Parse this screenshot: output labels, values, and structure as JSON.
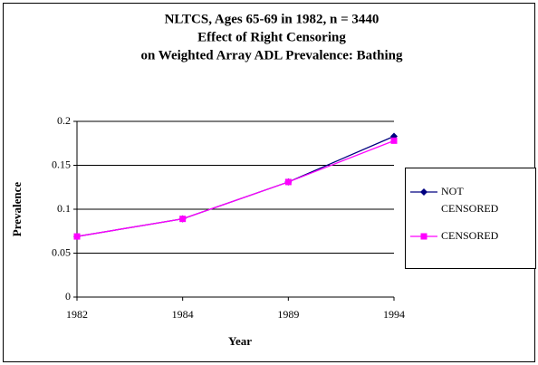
{
  "chart_data": {
    "type": "line",
    "title": [
      "NLTCS, Ages 65-69 in 1982, n = 3440",
      "Effect of Right Censoring",
      "on Weighted Array ADL Prevalence:  Bathing"
    ],
    "x_label": "Year",
    "y_label": "Prevalence",
    "categories": [
      "1982",
      "1984",
      "1989",
      "1994"
    ],
    "series": [
      {
        "name": "NOT CENSORED",
        "color": "#000080",
        "marker": "diamond",
        "values": [
          0.069,
          0.089,
          0.131,
          0.183
        ]
      },
      {
        "name": "CENSORED",
        "color": "#ff00ff",
        "marker": "square",
        "values": [
          0.069,
          0.089,
          0.131,
          0.178
        ]
      }
    ],
    "ylim": [
      0,
      0.2
    ],
    "yticks": [
      0,
      0.05,
      0.1,
      0.15,
      0.2
    ],
    "grid": true,
    "legend": "right"
  }
}
